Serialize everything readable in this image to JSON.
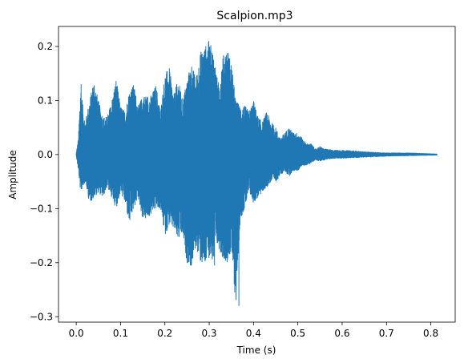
{
  "chart_data": {
    "type": "line",
    "title": "Scalpion.mp3",
    "xlabel": "Time (s)",
    "ylabel": "Amplitude",
    "xlim": [
      -0.04,
      0.855
    ],
    "ylim": [
      -0.31,
      0.237
    ],
    "xticks": [
      0.0,
      0.1,
      0.2,
      0.3,
      0.4,
      0.5,
      0.6,
      0.7,
      0.8
    ],
    "xtick_labels": [
      "0.0",
      "0.1",
      "0.2",
      "0.3",
      "0.4",
      "0.5",
      "0.6",
      "0.7",
      "0.8"
    ],
    "yticks": [
      -0.3,
      -0.2,
      -0.1,
      0.0,
      0.1,
      0.2
    ],
    "ytick_labels": [
      "−0.3",
      "−0.2",
      "−0.1",
      "0.0",
      "0.1",
      "0.2"
    ],
    "grid": false,
    "series": [
      {
        "color": "#1f77b4",
        "x_start": 0.0,
        "x_end": 0.814,
        "envelope": {
          "x": [
            0.0,
            0.005,
            0.01,
            0.015,
            0.02,
            0.03,
            0.04,
            0.05,
            0.06,
            0.07,
            0.08,
            0.09,
            0.1,
            0.11,
            0.12,
            0.13,
            0.14,
            0.15,
            0.16,
            0.17,
            0.18,
            0.19,
            0.2,
            0.21,
            0.22,
            0.23,
            0.24,
            0.25,
            0.26,
            0.27,
            0.28,
            0.29,
            0.3,
            0.31,
            0.32,
            0.33,
            0.34,
            0.35,
            0.36,
            0.37,
            0.38,
            0.39,
            0.4,
            0.41,
            0.42,
            0.43,
            0.44,
            0.45,
            0.46,
            0.47,
            0.48,
            0.49,
            0.5,
            0.51,
            0.52,
            0.53,
            0.54,
            0.55,
            0.56,
            0.57,
            0.58,
            0.6,
            0.62,
            0.65,
            0.7,
            0.75,
            0.814
          ],
          "max": [
            0.002,
            0.03,
            0.13,
            0.09,
            0.06,
            0.1,
            0.14,
            0.1,
            0.07,
            0.07,
            0.1,
            0.14,
            0.09,
            0.08,
            0.12,
            0.13,
            0.09,
            0.11,
            0.11,
            0.11,
            0.13,
            0.08,
            0.15,
            0.16,
            0.11,
            0.14,
            0.1,
            0.14,
            0.17,
            0.14,
            0.19,
            0.2,
            0.21,
            0.19,
            0.13,
            0.18,
            0.2,
            0.17,
            0.1,
            0.09,
            0.09,
            0.08,
            0.1,
            0.07,
            0.06,
            0.08,
            0.06,
            0.05,
            0.03,
            0.04,
            0.05,
            0.04,
            0.04,
            0.03,
            0.02,
            0.02,
            0.01,
            0.015,
            0.01,
            0.01,
            0.008,
            0.008,
            0.007,
            0.005,
            0.003,
            0.003,
            0.001
          ],
          "min": [
            -0.002,
            -0.03,
            -0.07,
            -0.06,
            -0.05,
            -0.09,
            -0.08,
            -0.07,
            -0.08,
            -0.06,
            -0.08,
            -0.1,
            -0.07,
            -0.09,
            -0.13,
            -0.1,
            -0.08,
            -0.12,
            -0.12,
            -0.11,
            -0.1,
            -0.1,
            -0.15,
            -0.13,
            -0.14,
            -0.16,
            -0.15,
            -0.2,
            -0.21,
            -0.17,
            -0.2,
            -0.21,
            -0.19,
            -0.2,
            -0.17,
            -0.19,
            -0.2,
            -0.18,
            -0.28,
            -0.12,
            -0.1,
            -0.07,
            -0.09,
            -0.08,
            -0.07,
            -0.06,
            -0.05,
            -0.05,
            -0.04,
            -0.03,
            -0.04,
            -0.03,
            -0.03,
            -0.02,
            -0.02,
            -0.015,
            -0.01,
            -0.012,
            -0.01,
            -0.008,
            -0.007,
            -0.007,
            -0.006,
            -0.005,
            -0.003,
            -0.002,
            -0.001
          ]
        },
        "peak_max": 0.21,
        "peak_min": -0.28
      }
    ]
  }
}
